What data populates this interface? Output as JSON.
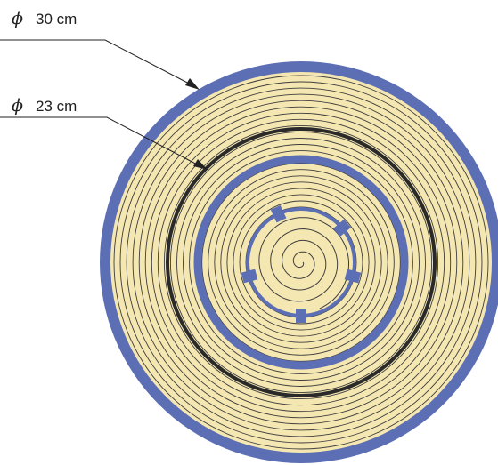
{
  "labels": {
    "outer_symbol": "ϕ",
    "outer_diameter": "30 cm",
    "inner_symbol": "ϕ",
    "inner_diameter": "23 cm"
  },
  "colors": {
    "background": "#ffffff",
    "fill": "#f5e7b2",
    "ring_line": "#3d3d3d",
    "blue": "#5d6fb4",
    "dark_ring": "#2a2a2a",
    "leader": "#222222"
  },
  "spiral": {
    "ring_count": 22
  }
}
